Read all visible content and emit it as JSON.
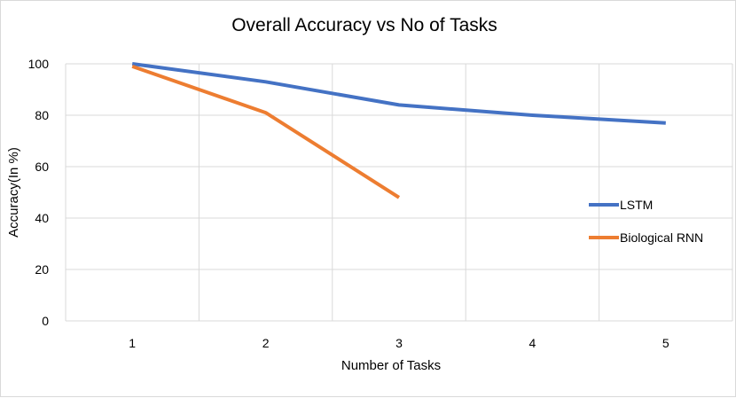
{
  "chart_data": {
    "type": "line",
    "title": "Overall Accuracy vs No of Tasks",
    "xlabel": "Number of Tasks",
    "ylabel": "Accuracy(In %)",
    "categories": [
      "1",
      "2",
      "3",
      "4",
      "5"
    ],
    "ylim": [
      0,
      100
    ],
    "yticks": [
      0,
      20,
      40,
      60,
      80,
      100
    ],
    "grid": true,
    "legend_position": "right",
    "series": [
      {
        "name": "LSTM",
        "color": "#4472c4",
        "values": [
          100,
          93,
          84,
          80,
          77
        ]
      },
      {
        "name": "Biological RNN",
        "color": "#ed7d31",
        "values": [
          99,
          81,
          48,
          null,
          null
        ]
      }
    ]
  }
}
